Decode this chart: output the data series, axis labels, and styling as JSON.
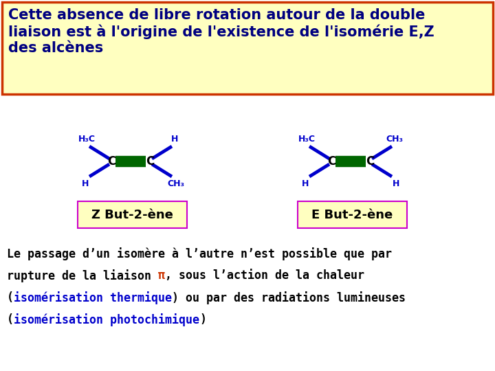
{
  "title_text": "Cette absence de libre rotation autour de la double\nliaison est à l'origine de l'existence de l'isomérie E,Z\ndes alcènes",
  "title_box_bg": "#FFFFC0",
  "title_box_edge": "#CC3300",
  "title_font_size": 15,
  "title_font_color": "#000080",
  "bg_color": "#FFFFFF",
  "molecule_bond_color": "#0000CC",
  "double_bond_color": "#006600",
  "z_label": "Z But-2-ène",
  "e_label": "E But-2-ène",
  "label_box_bg": "#FFFFC0",
  "label_box_edge": "#CC00CC",
  "text_color": "#000000",
  "highlight_color": "#0000CC",
  "pi_color": "#CC3300"
}
